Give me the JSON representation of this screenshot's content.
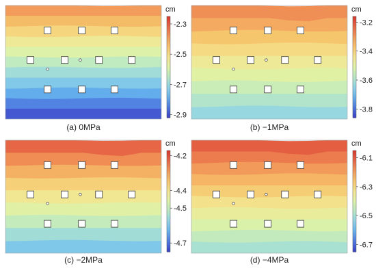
{
  "chart_data": [
    {
      "type": "heatmap",
      "caption": "(a) 0MPa",
      "colorbar": {
        "unit": "cm",
        "ticks": [
          "-2.3",
          "-2.5",
          "-2.7",
          "-2.9"
        ],
        "range": [
          -2.92,
          -2.25
        ]
      },
      "field": {
        "top": -2.36,
        "bottom": -2.92,
        "bands": 11,
        "notch": 0
      },
      "colormap": [
        "#3b43c8",
        "#4f7be0",
        "#66b3ee",
        "#8fd3e6",
        "#b9e8c4",
        "#dff2a6",
        "#f4e58f",
        "#f6c56c",
        "#f29a5a",
        "#e86a47",
        "#d83a30"
      ]
    },
    {
      "type": "heatmap",
      "caption": "(b) −1MPa",
      "colorbar": {
        "unit": "cm",
        "ticks": [
          "-3.2",
          "-3.4",
          "-3.6",
          "-3.8"
        ],
        "range": [
          -3.86,
          -3.16
        ]
      },
      "field": {
        "top": -3.26,
        "bottom": -3.66,
        "bands": 9,
        "notch": 1
      },
      "colormap": [
        "#3b43c8",
        "#4f7be0",
        "#66b3ee",
        "#8fd3e6",
        "#b9e8c4",
        "#dff2a6",
        "#f4e58f",
        "#f6c56c",
        "#f29a5a",
        "#e86a47",
        "#d83a30"
      ]
    },
    {
      "type": "heatmap",
      "caption": "(c) −2MPa",
      "colorbar": {
        "unit": "cm",
        "ticks": [
          "-4.2",
          "-4.4",
          "-4.5",
          "-4.7"
        ],
        "range": [
          -4.75,
          -4.17
        ]
      },
      "field": {
        "top": -4.2,
        "bottom": -4.62,
        "bands": 9,
        "notch": 1
      },
      "colormap": [
        "#3b43c8",
        "#4f7be0",
        "#66b3ee",
        "#8fd3e6",
        "#b9e8c4",
        "#dff2a6",
        "#f4e58f",
        "#f6c56c",
        "#f29a5a",
        "#e86a47",
        "#d83a30"
      ]
    },
    {
      "type": "heatmap",
      "caption": "(d) −4MPa",
      "colorbar": {
        "unit": "cm",
        "ticks": [
          "-6.1",
          "-6.3",
          "-6.5",
          "-6.7"
        ],
        "range": [
          -6.75,
          -6.05
        ]
      },
      "field": {
        "top": -6.08,
        "bottom": -6.52,
        "bands": 10,
        "notch": 1
      },
      "colormap": [
        "#3b43c8",
        "#4f7be0",
        "#66b3ee",
        "#8fd3e6",
        "#b9e8c4",
        "#dff2a6",
        "#f4e58f",
        "#f6c56c",
        "#f29a5a",
        "#e86a47",
        "#d83a30"
      ]
    }
  ]
}
